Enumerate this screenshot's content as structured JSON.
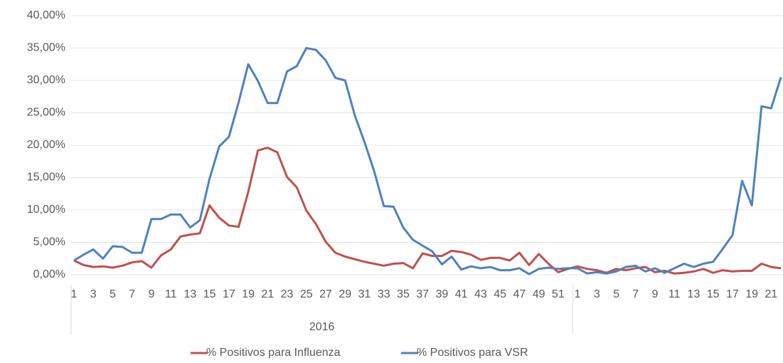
{
  "chart_data": {
    "type": "line",
    "categories": [
      "1",
      null,
      "3",
      null,
      "5",
      null,
      "7",
      null,
      "9",
      null,
      "11",
      null,
      "13",
      null,
      "15",
      null,
      "17",
      null,
      "19",
      null,
      "21",
      null,
      "23",
      null,
      "25",
      null,
      "27",
      null,
      "29",
      null,
      "31",
      null,
      "33",
      null,
      "35",
      null,
      "37",
      null,
      "39",
      null,
      "41",
      null,
      "43",
      null,
      "45",
      null,
      "47",
      null,
      "49",
      null,
      "51",
      null,
      "1",
      null,
      "3",
      null,
      "5",
      null,
      "7",
      null,
      "9",
      null,
      "11",
      null,
      "13",
      null,
      "15",
      null,
      "17",
      null,
      "19",
      null,
      "21",
      null
    ],
    "x_group_label": "2016",
    "series": [
      {
        "name": "% Positivos para Influenza",
        "color": "#c0504d",
        "values": [
          2.2,
          1.5,
          1.2,
          1.3,
          1.1,
          1.4,
          1.9,
          2.1,
          1.1,
          3.0,
          3.9,
          5.9,
          6.2,
          6.4,
          10.7,
          8.8,
          7.6,
          7.4,
          12.8,
          19.2,
          19.6,
          18.9,
          15.1,
          13.5,
          9.9,
          7.8,
          5.1,
          3.4,
          2.8,
          2.4,
          2.0,
          1.7,
          1.4,
          1.7,
          1.8,
          1.0,
          3.3,
          2.9,
          2.9,
          3.7,
          3.5,
          3.1,
          2.3,
          2.6,
          2.6,
          2.2,
          3.4,
          1.5,
          3.2,
          1.7,
          0.4,
          0.9,
          1.3,
          0.9,
          0.7,
          0.3,
          0.9,
          0.7,
          1.0,
          1.2,
          0.4,
          0.6,
          0.2,
          0.3,
          0.5,
          0.9,
          0.3,
          0.7,
          0.5,
          0.6,
          0.6,
          1.7,
          1.2,
          1.0
        ]
      },
      {
        "name": "% Positivos para VSR",
        "color": "#4f81bd",
        "values": [
          2.2,
          3.1,
          3.9,
          2.5,
          4.4,
          4.3,
          3.4,
          3.4,
          8.6,
          8.6,
          9.3,
          9.3,
          7.3,
          8.4,
          14.8,
          19.8,
          21.3,
          26.6,
          32.5,
          29.9,
          26.5,
          26.5,
          31.4,
          32.2,
          35.0,
          34.7,
          33.1,
          30.4,
          30.0,
          24.6,
          20.5,
          16.0,
          10.6,
          10.5,
          7.3,
          5.4,
          4.5,
          3.6,
          1.6,
          2.8,
          0.8,
          1.3,
          1.0,
          1.2,
          0.7,
          0.7,
          1.0,
          0.1,
          0.9,
          1.1,
          0.9,
          1.0,
          1.0,
          0.2,
          0.4,
          0.2,
          0.5,
          1.2,
          1.4,
          0.5,
          1.0,
          0.3,
          1.0,
          1.7,
          1.2,
          1.7,
          2.0,
          4.0,
          6.1,
          14.5,
          10.7,
          26.0,
          25.7,
          30.5
        ]
      }
    ],
    "ylim": [
      0,
      40
    ],
    "yticks": [
      {
        "value": 0,
        "label": "0,00%"
      },
      {
        "value": 5,
        "label": "5,00%"
      },
      {
        "value": 10,
        "label": "10,00%"
      },
      {
        "value": 15,
        "label": "15,00%"
      },
      {
        "value": 20,
        "label": "20,00%"
      },
      {
        "value": 25,
        "label": "25,00%"
      },
      {
        "value": 30,
        "label": "30,00%"
      },
      {
        "value": 35,
        "label": "35,00%"
      },
      {
        "value": 40,
        "label": "40,00%"
      }
    ],
    "grid": true
  }
}
